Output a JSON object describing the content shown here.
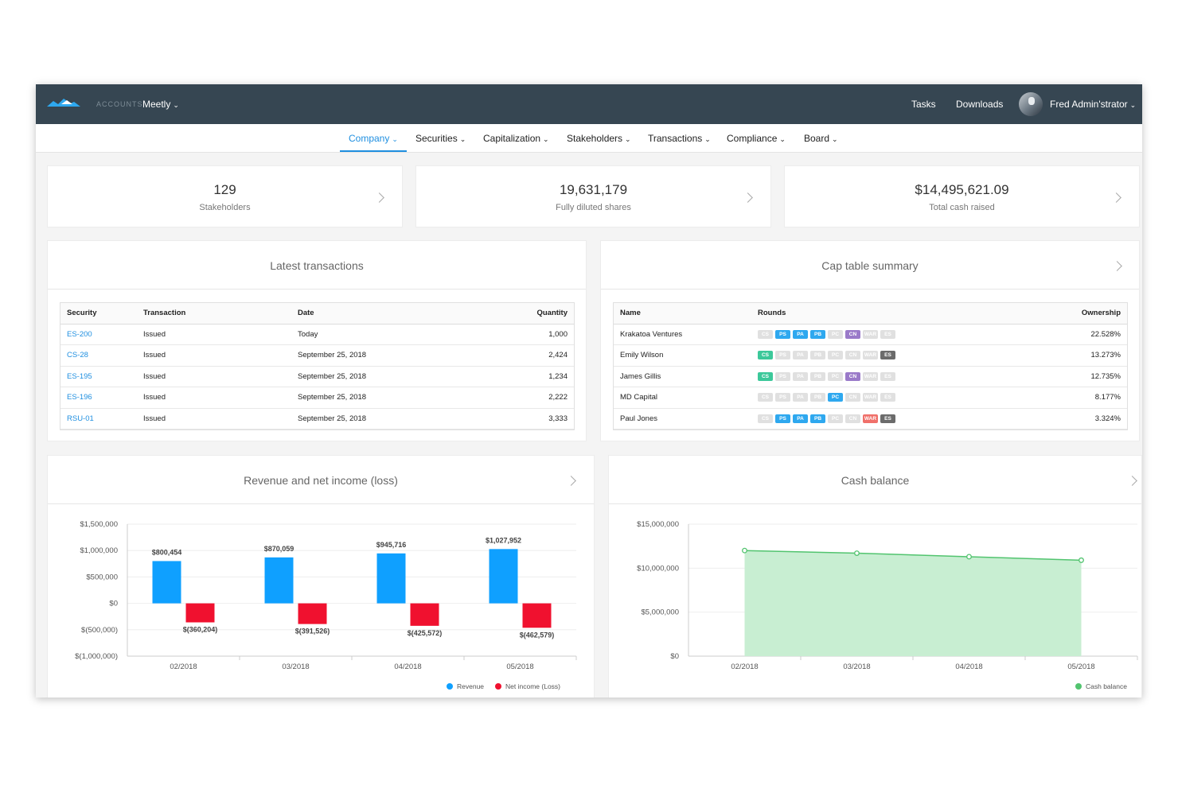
{
  "topbar": {
    "accounts_label": "ACCOUNTS",
    "account_name": "Meetly",
    "tasks": "Tasks",
    "downloads": "Downloads",
    "user_name": "Fred Admin'strator",
    "chevron": "⌄"
  },
  "nav": {
    "tabs": [
      {
        "label": "Company"
      },
      {
        "label": "Securities"
      },
      {
        "label": "Capitalization"
      },
      {
        "label": "Stakeholders"
      },
      {
        "label": "Transactions"
      },
      {
        "label": "Compliance"
      },
      {
        "label": "Board"
      }
    ],
    "active": "Company"
  },
  "kpis": [
    {
      "value": "129",
      "label": "Stakeholders"
    },
    {
      "value": "19,631,179",
      "label": "Fully diluted shares"
    },
    {
      "value": "$14,495,621.09",
      "label": "Total cash raised"
    }
  ],
  "transactions": {
    "title": "Latest transactions",
    "headers": [
      "Security",
      "Transaction",
      "Date",
      "Quantity"
    ],
    "rows": [
      [
        "ES-200",
        "Issued",
        "Today",
        "1,000"
      ],
      [
        "CS-28",
        "Issued",
        "September 25, 2018",
        "2,424"
      ],
      [
        "ES-195",
        "Issued",
        "September 25, 2018",
        "1,234"
      ],
      [
        "ES-196",
        "Issued",
        "September 25, 2018",
        "2,222"
      ],
      [
        "RSU-01",
        "Issued",
        "September 25, 2018",
        "3,333"
      ]
    ]
  },
  "captable": {
    "title": "Cap table summary",
    "headers": [
      "Name",
      "Rounds",
      "Ownership"
    ],
    "round_labels": [
      "CS",
      "PS",
      "PA",
      "PB",
      "PC",
      "CN",
      "WAR",
      "ES"
    ],
    "round_colors": {
      "CS": "#3cc89a",
      "PS": "#2ea8ef",
      "PA": "#2ea8ef",
      "PB": "#2ea8ef",
      "PC": "#2ea8ef",
      "CN": "#9a7ac9",
      "WAR": "#f0706a",
      "ES": "#6b6b6b"
    },
    "rows": [
      {
        "name": "Krakatoa Ventures",
        "active": [
          "PS",
          "PA",
          "PB",
          "CN"
        ],
        "ownership": "22.528%"
      },
      {
        "name": "Emily Wilson",
        "active": [
          "CS",
          "ES"
        ],
        "ownership": "13.273%"
      },
      {
        "name": "James Gillis",
        "active": [
          "CS",
          "CN"
        ],
        "ownership": "12.735%"
      },
      {
        "name": "MD Capital",
        "active": [
          "PC"
        ],
        "ownership": "8.177%"
      },
      {
        "name": "Paul Jones",
        "active": [
          "PS",
          "PA",
          "PB",
          "WAR",
          "ES"
        ],
        "ownership": "3.324%"
      }
    ]
  },
  "chart_data": [
    {
      "type": "bar",
      "title": "Revenue and net income (loss)",
      "categories": [
        "02/2018",
        "03/2018",
        "04/2018",
        "05/2018"
      ],
      "series": [
        {
          "name": "Revenue",
          "color": "#0fa0ff",
          "values": [
            800454,
            870059,
            945716,
            1027952
          ],
          "labels": [
            "$800,454",
            "$870,059",
            "$945,716",
            "$1,027,952"
          ]
        },
        {
          "name": "Net income (Loss)",
          "color": "#f0112f",
          "values": [
            -360204,
            -391526,
            -425572,
            -462579
          ],
          "labels": [
            "$(360,204)",
            "$(391,526)",
            "$(425,572)",
            "$(462,579)"
          ]
        }
      ],
      "ylim": [
        -1000000,
        1500000
      ],
      "yticks": [
        1500000,
        1000000,
        500000,
        0,
        -500000,
        -1000000
      ],
      "ytick_labels": [
        "$1,500,000",
        "$1,000,000",
        "$500,000",
        "$0",
        "$(500,000)",
        "$(1,000,000)"
      ],
      "grid": true,
      "legend": "bottom-right"
    },
    {
      "type": "area",
      "title": "Cash balance",
      "categories": [
        "02/2018",
        "03/2018",
        "04/2018",
        "05/2018"
      ],
      "series": [
        {
          "name": "Cash balance",
          "color": "#52c46f",
          "values": [
            12000000,
            11700000,
            11300000,
            10900000
          ]
        }
      ],
      "ylim": [
        0,
        15000000
      ],
      "yticks": [
        15000000,
        10000000,
        5000000,
        0
      ],
      "ytick_labels": [
        "$15,000,000",
        "$10,000,000",
        "$5,000,000",
        "$0"
      ],
      "grid": true,
      "legend": "bottom-right"
    }
  ]
}
